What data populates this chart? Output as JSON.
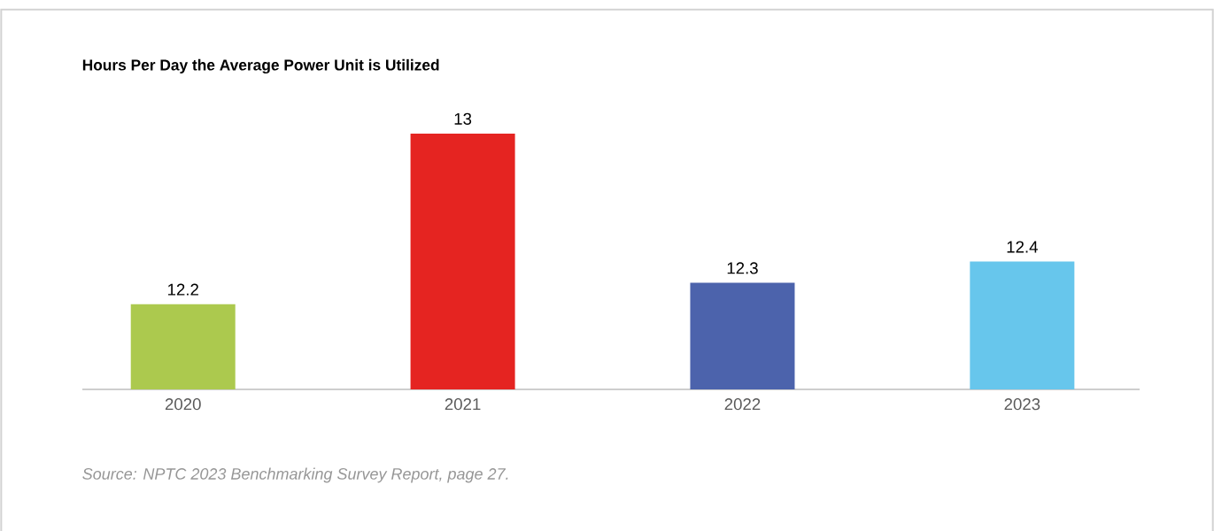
{
  "chart_data": {
    "type": "bar",
    "title": "Hours Per Day the Average Power Unit is Utilized",
    "categories": [
      "2020",
      "2021",
      "2022",
      "2023"
    ],
    "values": [
      12.2,
      13,
      12.3,
      12.4
    ],
    "colors": [
      "#acc94e",
      "#e52421",
      "#4c63ac",
      "#67c6ec"
    ],
    "ylim": [
      11.8,
      13
    ],
    "tick_labels": "x",
    "data_labels": true,
    "annotations": [
      "Source: NPTC 2023 Benchmarking Survey Report, page 27."
    ]
  }
}
